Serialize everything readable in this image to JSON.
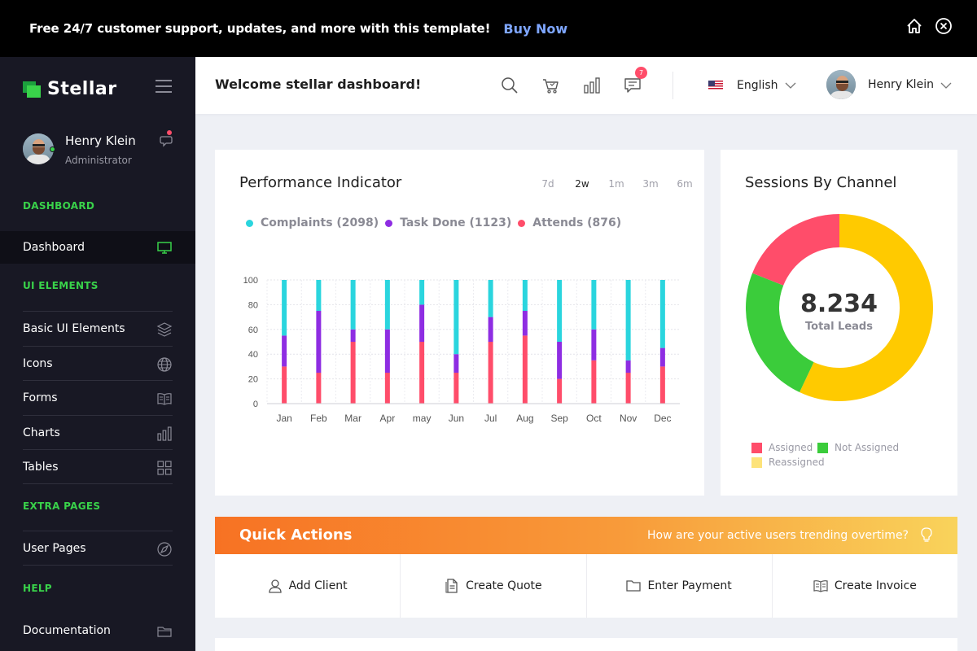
{
  "banner": {
    "text": "Free 24/7 customer support, updates, and more with this template!",
    "link": "Buy Now",
    "icons": [
      "home-icon",
      "close-circle-icon"
    ]
  },
  "sidebar": {
    "brand": "Stellar",
    "user": {
      "name": "Henry Klein",
      "role": "Administrator"
    },
    "sections": [
      {
        "heading": "DASHBOARD",
        "items": [
          {
            "label": "Dashboard",
            "icon": "monitor-icon",
            "active": true
          }
        ]
      },
      {
        "heading": "UI ELEMENTS",
        "items": [
          {
            "label": "Basic UI Elements",
            "icon": "layers-icon"
          },
          {
            "label": "Icons",
            "icon": "globe-icon"
          },
          {
            "label": "Forms",
            "icon": "book-icon"
          },
          {
            "label": "Charts",
            "icon": "bar-chart-icon"
          },
          {
            "label": "Tables",
            "icon": "grid-icon"
          }
        ]
      },
      {
        "heading": "EXTRA PAGES",
        "items": [
          {
            "label": "User Pages",
            "icon": "compass-icon"
          }
        ]
      },
      {
        "heading": "HELP",
        "items": [
          {
            "label": "Documentation",
            "icon": "folder-icon"
          }
        ]
      }
    ]
  },
  "header": {
    "welcome": "Welcome stellar dashboard!",
    "notification_count": "7",
    "language": "English",
    "user_name": "Henry Klein"
  },
  "performance": {
    "title": "Performance Indicator",
    "ranges": [
      "7d",
      "2w",
      "1m",
      "3m",
      "6m"
    ],
    "selected_range": "2w",
    "legend": [
      "Complaints (2098)",
      "Task Done (1123)",
      "Attends (876)"
    ]
  },
  "chart_data": {
    "type": "bar",
    "stacked": true,
    "categories": [
      "Jan",
      "Feb",
      "Mar",
      "Apr",
      "may",
      "Jun",
      "Jul",
      "Aug",
      "Sep",
      "Oct",
      "Nov",
      "Dec"
    ],
    "series": [
      {
        "name": "Attends",
        "color": "#ff4d6a",
        "values": [
          30,
          25,
          50,
          25,
          50,
          25,
          50,
          55,
          20,
          35,
          25,
          30
        ]
      },
      {
        "name": "Task Done",
        "color": "#8e2de2",
        "values": [
          25,
          50,
          10,
          35,
          30,
          15,
          20,
          20,
          30,
          25,
          10,
          15
        ]
      },
      {
        "name": "Complaints",
        "color": "#2ad5de",
        "values": [
          45,
          25,
          40,
          40,
          20,
          60,
          30,
          25,
          50,
          40,
          65,
          55
        ]
      }
    ],
    "yticks": [
      0,
      20,
      40,
      60,
      80,
      100
    ],
    "ylim": [
      0,
      100
    ],
    "grid": true
  },
  "sessions": {
    "title": "Sessions By Channel",
    "total": "8.234",
    "total_label": "Total Leads",
    "legend": [
      "Assigned",
      "Not Assigned",
      "Reassigned"
    ],
    "donut": [
      {
        "label": "Reassigned",
        "color": "#ffca00",
        "value": 57
      },
      {
        "label": "Not Assigned",
        "color": "#3bcc3b",
        "value": 24
      },
      {
        "label": "Assigned",
        "color": "#ff4d6a",
        "value": 19
      }
    ],
    "legend_colors": [
      "#ff4d6a",
      "#3bcc3b",
      "#fde37a"
    ]
  },
  "quick_actions": {
    "title": "Quick Actions",
    "question": "How are your active users trending overtime?",
    "items": [
      "Add Client",
      "Create Quote",
      "Enter Payment",
      "Create Invoice"
    ]
  }
}
